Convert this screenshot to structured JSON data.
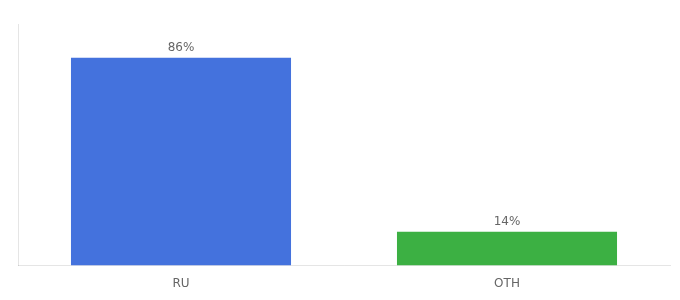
{
  "chart_data": {
    "type": "bar",
    "categories": [
      "RU",
      "OTH"
    ],
    "values": [
      86,
      14
    ],
    "value_labels": [
      "86%",
      "14%"
    ],
    "data_labels": true,
    "colors": [
      "#4472dd",
      "#3cb043"
    ],
    "ylim": [
      0,
      100
    ],
    "grid": false,
    "tick_labels": "x"
  }
}
